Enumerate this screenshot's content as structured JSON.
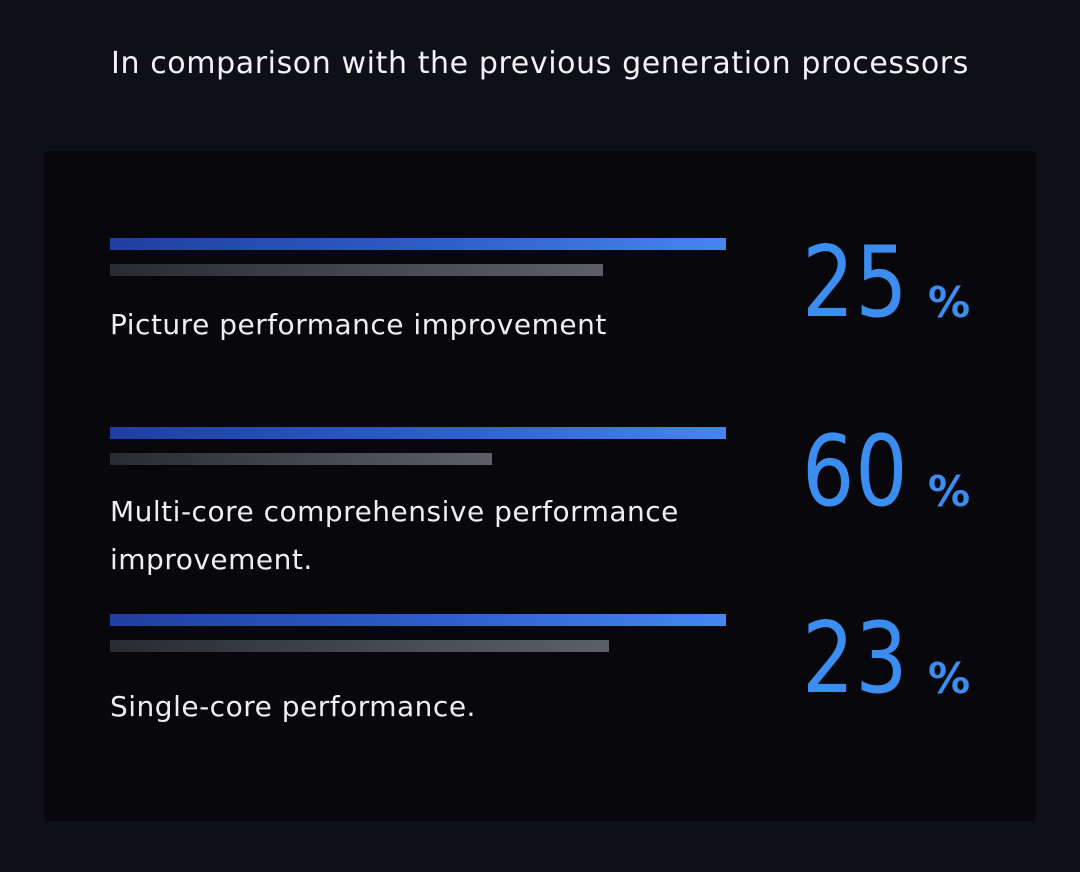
{
  "title": "In comparison with the previous generation processors",
  "colors": {
    "background": "#0e0f17",
    "panel": "#08080c",
    "accent": "#3b8df0",
    "bar_new": "#4586f0",
    "bar_old": "#5e5f66"
  },
  "chart_data": {
    "type": "bar",
    "title": "In comparison with the previous generation processors",
    "categories": [
      "Picture performance improvement",
      "Multi-core comprehensive performance improvement.",
      "Single-core performance."
    ],
    "values": [
      25,
      60,
      23
    ],
    "value_labels": [
      "25",
      "60",
      "23"
    ],
    "unit": "%",
    "series": [
      {
        "values": [
          100,
          100,
          100
        ]
      },
      {
        "values": [
          80,
          62,
          81
        ]
      }
    ]
  }
}
